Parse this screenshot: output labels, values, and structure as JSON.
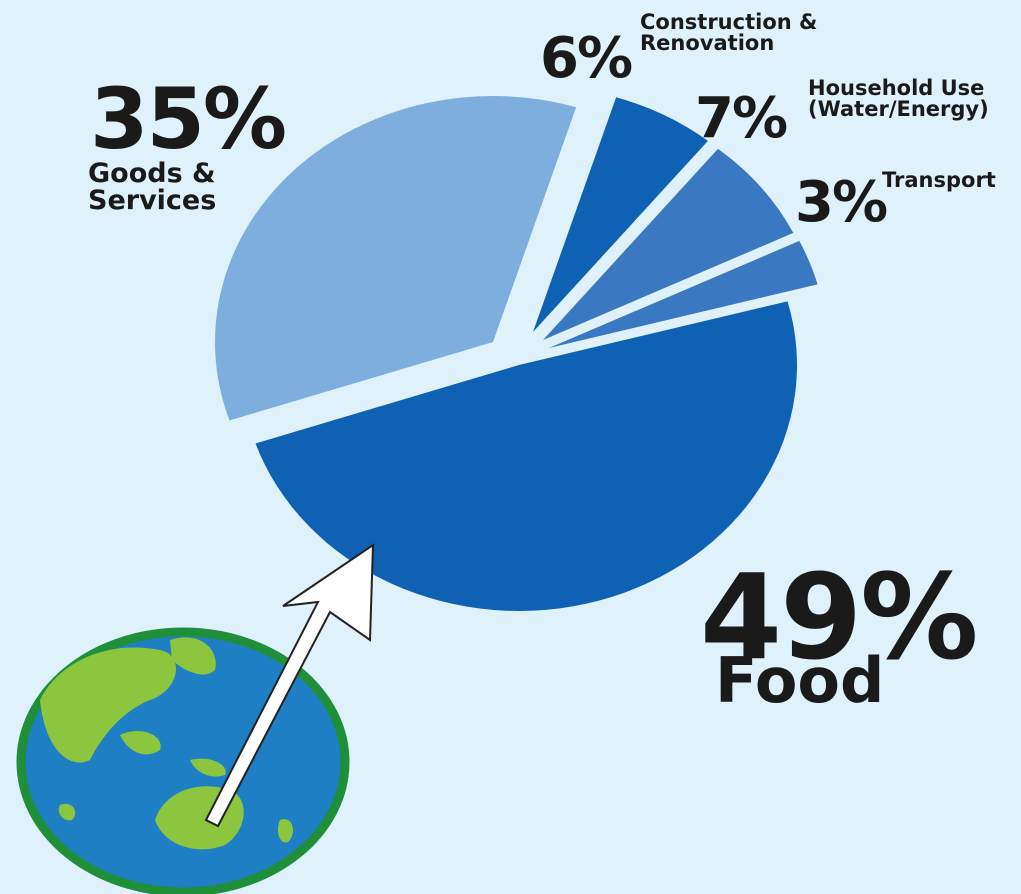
{
  "chart_data": {
    "type": "pie",
    "title": "",
    "slices": [
      {
        "label": "Food",
        "value": 49,
        "value_label": "49%",
        "color": "#0f62b3"
      },
      {
        "label": "Goods & Services",
        "value": 35,
        "value_label": "35%",
        "color": "#7eaedd"
      },
      {
        "label": "Construction & Renovation",
        "value": 6,
        "value_label": "6%",
        "color": "#0f62b3"
      },
      {
        "label": "Household Use (Water/Energy)",
        "value": 7,
        "value_label": "7%",
        "color": "#3a79c2"
      },
      {
        "label": "Transport",
        "value": 3,
        "value_label": "3%",
        "color": "#3a79c2"
      }
    ],
    "exploded": true
  },
  "labels": {
    "goods": {
      "pct": "35%",
      "cat": "Goods &\nServices"
    },
    "construction": {
      "pct": "6%",
      "cat": "Construction &\nRenovation"
    },
    "household": {
      "pct": "7%",
      "cat": "Household Use\n(Water/Energy)"
    },
    "transport": {
      "pct": "3%",
      "cat": "Transport"
    },
    "food": {
      "pct": "49%",
      "cat": "Food"
    }
  },
  "colors": {
    "background": "#dff1fb",
    "globe_ocean": "#1e7fc4",
    "globe_land": "#8cc63f",
    "globe_rim": "#1f8f3a",
    "arrow_fill": "#ffffff",
    "arrow_stroke": "#222222"
  },
  "icons": [
    "globe-icon",
    "arrow-icon"
  ]
}
